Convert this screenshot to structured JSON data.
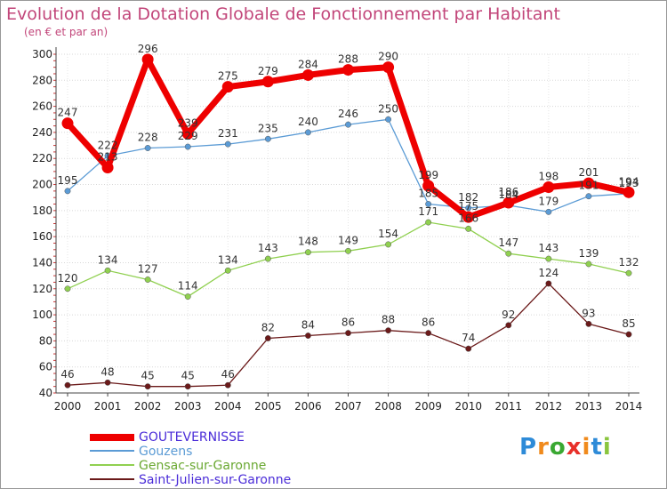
{
  "chart_data": {
    "type": "line",
    "title": "Evolution de la Dotation Globale de Fonctionnement par Habitant",
    "subtitle": "(en € et par an)",
    "x": [
      "2000",
      "2001",
      "2002",
      "2003",
      "2004",
      "2005",
      "2006",
      "2007",
      "2008",
      "2009",
      "2010",
      "2011",
      "2012",
      "2013",
      "2014"
    ],
    "ylim": [
      40,
      300
    ],
    "yticks": [
      40,
      60,
      80,
      100,
      120,
      140,
      160,
      180,
      200,
      220,
      240,
      260,
      280,
      300
    ],
    "grid": true,
    "series": [
      {
        "name": "GOUTEVERNISSE",
        "color": "#ee0000",
        "labelColor": "#4a2cd8",
        "emphasis": true,
        "values": [
          247,
          213,
          296,
          239,
          275,
          279,
          284,
          288,
          290,
          199,
          175,
          186,
          198,
          201,
          194
        ]
      },
      {
        "name": "Gouzens",
        "color": "#5b9bd5",
        "values": [
          195,
          222,
          228,
          229,
          231,
          235,
          240,
          246,
          250,
          185,
          182,
          184,
          179,
          191,
          193
        ]
      },
      {
        "name": "Gensac-sur-Garonne",
        "color": "#90d050",
        "values": [
          120,
          134,
          127,
          114,
          134,
          143,
          148,
          149,
          154,
          171,
          166,
          147,
          143,
          139,
          132
        ]
      },
      {
        "name": "Saint-Julien-sur-Garonne",
        "color": "#6b1a1a",
        "values": [
          46,
          48,
          45,
          45,
          46,
          82,
          84,
          86,
          88,
          86,
          74,
          92,
          124,
          93,
          85
        ]
      }
    ]
  },
  "logo": {
    "letters": [
      "P",
      "r",
      "o",
      "x",
      "i",
      "t",
      "i"
    ],
    "colors": [
      "#2e8bd8",
      "#f08a1c",
      "#3aa832",
      "#e8302a",
      "#f08a1c",
      "#2e8bd8",
      "#8ac53e"
    ]
  }
}
